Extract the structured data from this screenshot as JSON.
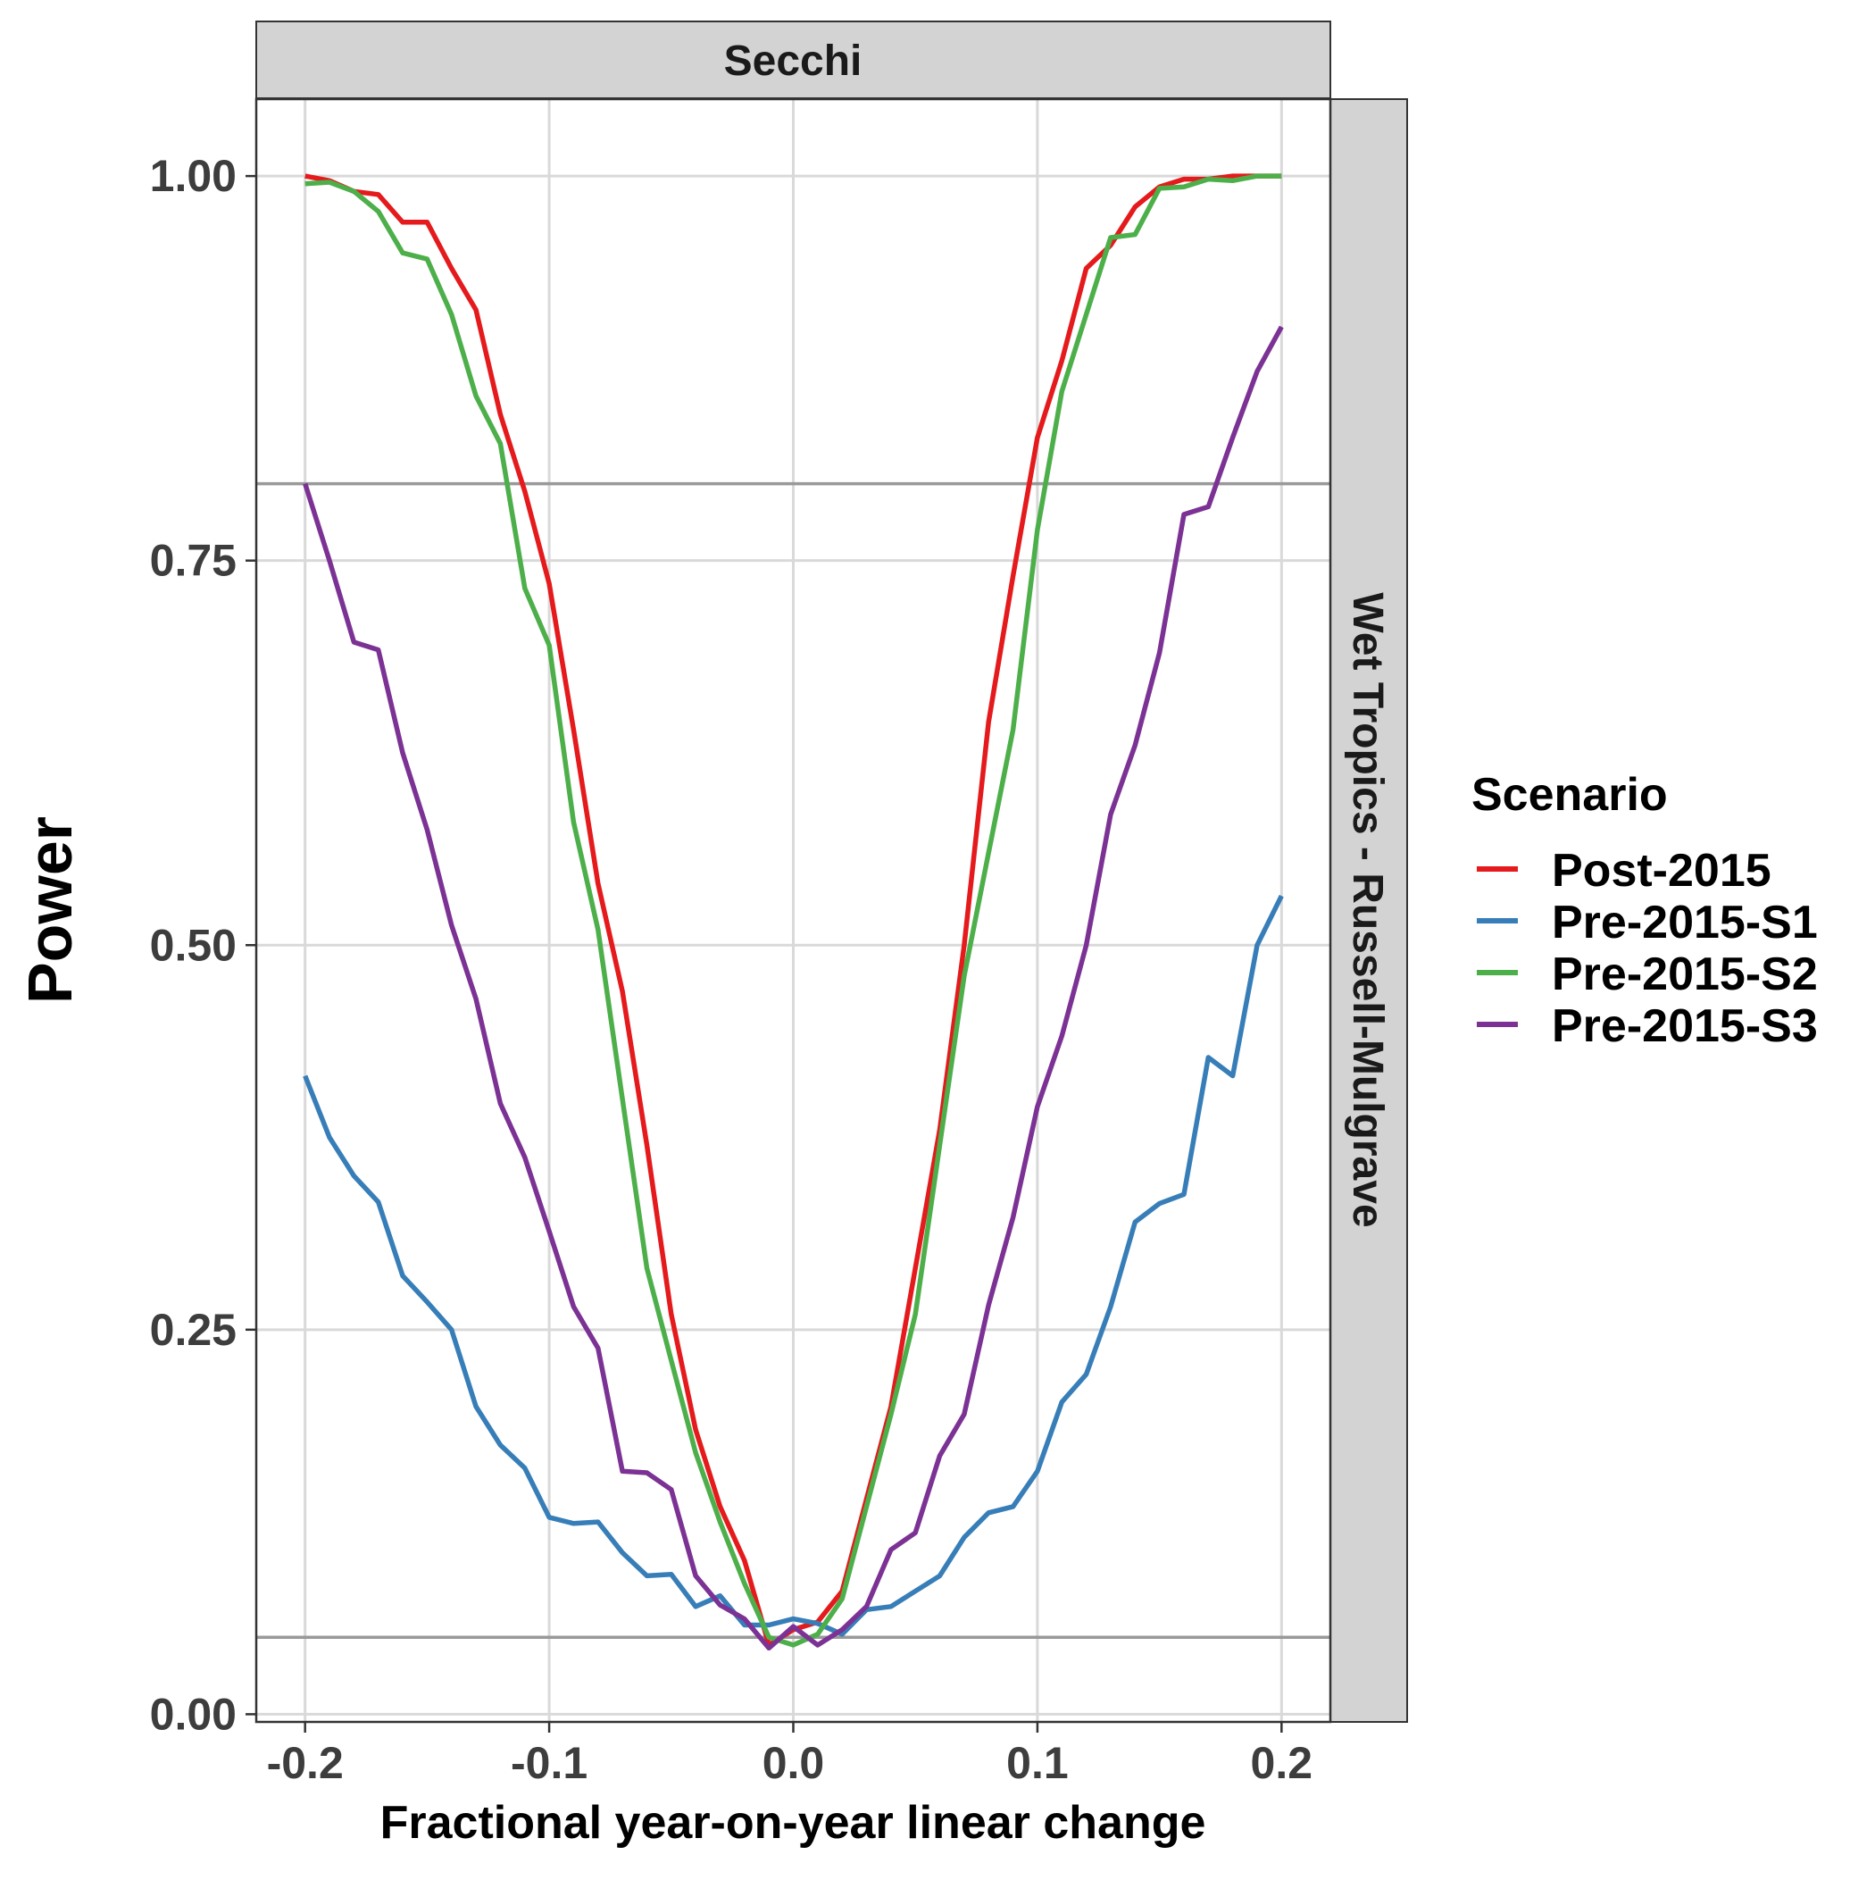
{
  "chart_data": {
    "type": "line",
    "facet_top": "Secchi",
    "facet_right": "Wet Tropics - Russell-Mulgrave",
    "xlabel": "Fractional year-on-year linear change",
    "ylabel": "Power",
    "xlim": [
      -0.22,
      0.22
    ],
    "ylim": [
      -0.005,
      1.05
    ],
    "xticks": [
      -0.2,
      -0.1,
      0.0,
      0.1,
      0.2
    ],
    "xtick_labels": [
      "-0.2",
      "-0.1",
      "0.0",
      "0.1",
      "0.2"
    ],
    "yticks": [
      0.0,
      0.25,
      0.5,
      0.75,
      1.0
    ],
    "ytick_labels": [
      "0.00",
      "0.25",
      "0.50",
      "0.75",
      "1.00"
    ],
    "reference_lines": [
      0.05,
      0.8
    ],
    "grid": true,
    "legend_title": "Scenario",
    "legend_position": "right",
    "x": [
      -0.2,
      -0.19,
      -0.18,
      -0.17,
      -0.16,
      -0.15,
      -0.14,
      -0.13,
      -0.12,
      -0.11,
      -0.1,
      -0.09,
      -0.08,
      -0.07,
      -0.06,
      -0.05,
      -0.04,
      -0.03,
      -0.02,
      -0.01,
      0.0,
      0.01,
      0.02,
      0.03,
      0.04,
      0.05,
      0.06,
      0.07,
      0.08,
      0.09,
      0.1,
      0.11,
      0.12,
      0.13,
      0.14,
      0.15,
      0.16,
      0.17,
      0.18,
      0.19,
      0.2
    ],
    "series": [
      {
        "name": "Post-2015",
        "color": "#e41a1c",
        "values": [
          1.0,
          0.997,
          0.99,
          0.988,
          0.97,
          0.97,
          0.94,
          0.913,
          0.845,
          0.795,
          0.735,
          0.64,
          0.54,
          0.47,
          0.37,
          0.26,
          0.185,
          0.135,
          0.1,
          0.045,
          0.055,
          0.06,
          0.08,
          0.14,
          0.2,
          0.29,
          0.38,
          0.5,
          0.645,
          0.74,
          0.83,
          0.88,
          0.94,
          0.955,
          0.98,
          0.993,
          0.998,
          0.998,
          1.0,
          1.0,
          1.0
        ]
      },
      {
        "name": "Pre-2015-S1",
        "color": "#377eb8",
        "values": [
          0.415,
          0.375,
          0.35,
          0.333,
          0.285,
          0.268,
          0.25,
          0.2,
          0.175,
          0.16,
          0.128,
          0.124,
          0.125,
          0.105,
          0.09,
          0.091,
          0.07,
          0.077,
          0.058,
          0.058,
          0.062,
          0.059,
          0.052,
          0.068,
          0.07,
          0.08,
          0.09,
          0.115,
          0.131,
          0.135,
          0.158,
          0.203,
          0.221,
          0.265,
          0.32,
          0.332,
          0.338,
          0.427,
          0.415,
          0.5,
          0.532
        ]
      },
      {
        "name": "Pre-2015-S2",
        "color": "#4daf4a",
        "values": [
          0.995,
          0.996,
          0.99,
          0.977,
          0.95,
          0.946,
          0.91,
          0.857,
          0.826,
          0.732,
          0.695,
          0.58,
          0.51,
          0.4,
          0.29,
          0.23,
          0.17,
          0.125,
          0.085,
          0.05,
          0.045,
          0.052,
          0.075,
          0.135,
          0.195,
          0.26,
          0.37,
          0.48,
          0.56,
          0.64,
          0.77,
          0.86,
          0.91,
          0.96,
          0.962,
          0.992,
          0.993,
          0.998,
          0.997,
          1.0,
          1.0
        ]
      },
      {
        "name": "Pre-2015-S3",
        "color": "#7b3294",
        "values": [
          0.8,
          0.75,
          0.697,
          0.692,
          0.625,
          0.575,
          0.513,
          0.465,
          0.397,
          0.362,
          0.314,
          0.265,
          0.238,
          0.158,
          0.157,
          0.146,
          0.09,
          0.071,
          0.062,
          0.043,
          0.057,
          0.045,
          0.055,
          0.07,
          0.107,
          0.118,
          0.168,
          0.195,
          0.266,
          0.323,
          0.395,
          0.441,
          0.5,
          0.585,
          0.63,
          0.69,
          0.78,
          0.785,
          0.83,
          0.873,
          0.902
        ]
      }
    ]
  }
}
